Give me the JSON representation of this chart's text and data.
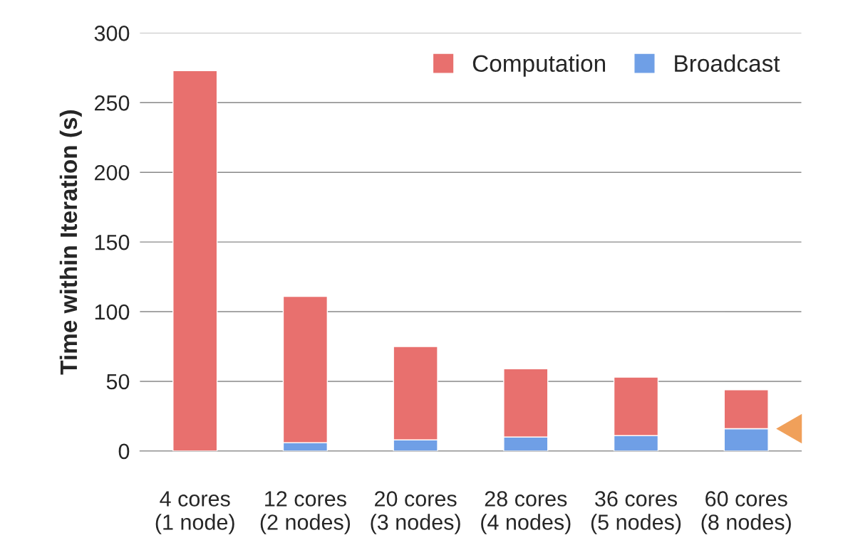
{
  "chart_data": {
    "type": "bar",
    "ylabel": "Time within Iteration (s)",
    "stacked": true,
    "categories": [
      "4 cores\n(1 node)",
      "12 cores\n(2 nodes)",
      "20 cores\n(3 nodes)",
      "28 cores\n(4 nodes)",
      "36 cores\n(5 nodes)",
      "60 cores\n(8 nodes)"
    ],
    "series": [
      {
        "name": "Broadcast",
        "color": "#6f9fe6",
        "values": [
          0,
          6,
          8,
          10,
          11,
          16
        ]
      },
      {
        "name": "Computation",
        "color": "#e8706e",
        "values": [
          273,
          105,
          67,
          49,
          42,
          28
        ]
      }
    ],
    "ylim": [
      0,
      300
    ],
    "yticks": [
      0,
      50,
      100,
      150,
      200,
      250,
      300
    ],
    "grid": "y",
    "legend": "top right"
  }
}
